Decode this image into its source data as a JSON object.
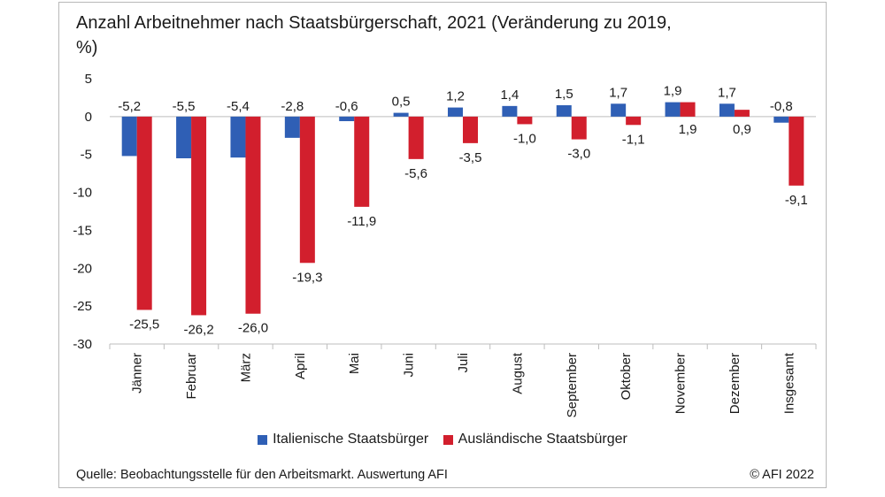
{
  "title": "Anzahl Arbeitnehmer nach Staatsbürgerschaft, 2021 (Veränderung zu 2019, %)",
  "source": "Quelle: Beobachtungsstelle für den Arbeitsmarkt. Auswertung AFI",
  "copyright": "© AFI 2022",
  "colors": {
    "italian": "#2f5fb5",
    "foreign": "#d21f2d"
  },
  "chart_data": {
    "type": "bar",
    "title": "Anzahl Arbeitnehmer nach Staatsbürgerschaft, 2021 (Veränderung zu 2019, %)",
    "categories": [
      "Jänner",
      "Februar",
      "März",
      "April",
      "Mai",
      "Juni",
      "Juli",
      "August",
      "September",
      "Oktober",
      "November",
      "Dezember",
      "Insgesamt"
    ],
    "series": [
      {
        "name": "Italienische Staatsbürger",
        "values": [
          -5.2,
          -5.5,
          -5.4,
          -2.8,
          -0.6,
          0.5,
          1.2,
          1.4,
          1.5,
          1.7,
          1.9,
          1.7,
          -0.8
        ],
        "labels": [
          "-5,2",
          "-5,5",
          "-5,4",
          "-2,8",
          "-0,6",
          "0,5",
          "1,2",
          "1,4",
          "1,5",
          "1,7",
          "1,9",
          "1,7",
          "-0,8"
        ]
      },
      {
        "name": "Ausländische Staatsbürger",
        "values": [
          -25.5,
          -26.2,
          -26.0,
          -19.3,
          -11.9,
          -5.6,
          -3.5,
          -1.0,
          -3.0,
          -1.1,
          1.9,
          0.9,
          -9.1
        ],
        "labels": [
          "-25,5",
          "-26,2",
          "-26,0",
          "-19,3",
          "-11,9",
          "-5,6",
          "-3,5",
          "-1,0",
          "-3,0",
          "-1,1",
          "1,9",
          "0,9",
          "-9,1"
        ]
      }
    ],
    "ylim": [
      -30,
      5
    ],
    "yticks": [
      "5",
      "0",
      "-5",
      "-10",
      "-15",
      "-20",
      "-25",
      "-30"
    ],
    "ytick_values": [
      5,
      0,
      -5,
      -10,
      -15,
      -20,
      -25,
      -30
    ],
    "grid": false,
    "legend_position": "bottom"
  }
}
